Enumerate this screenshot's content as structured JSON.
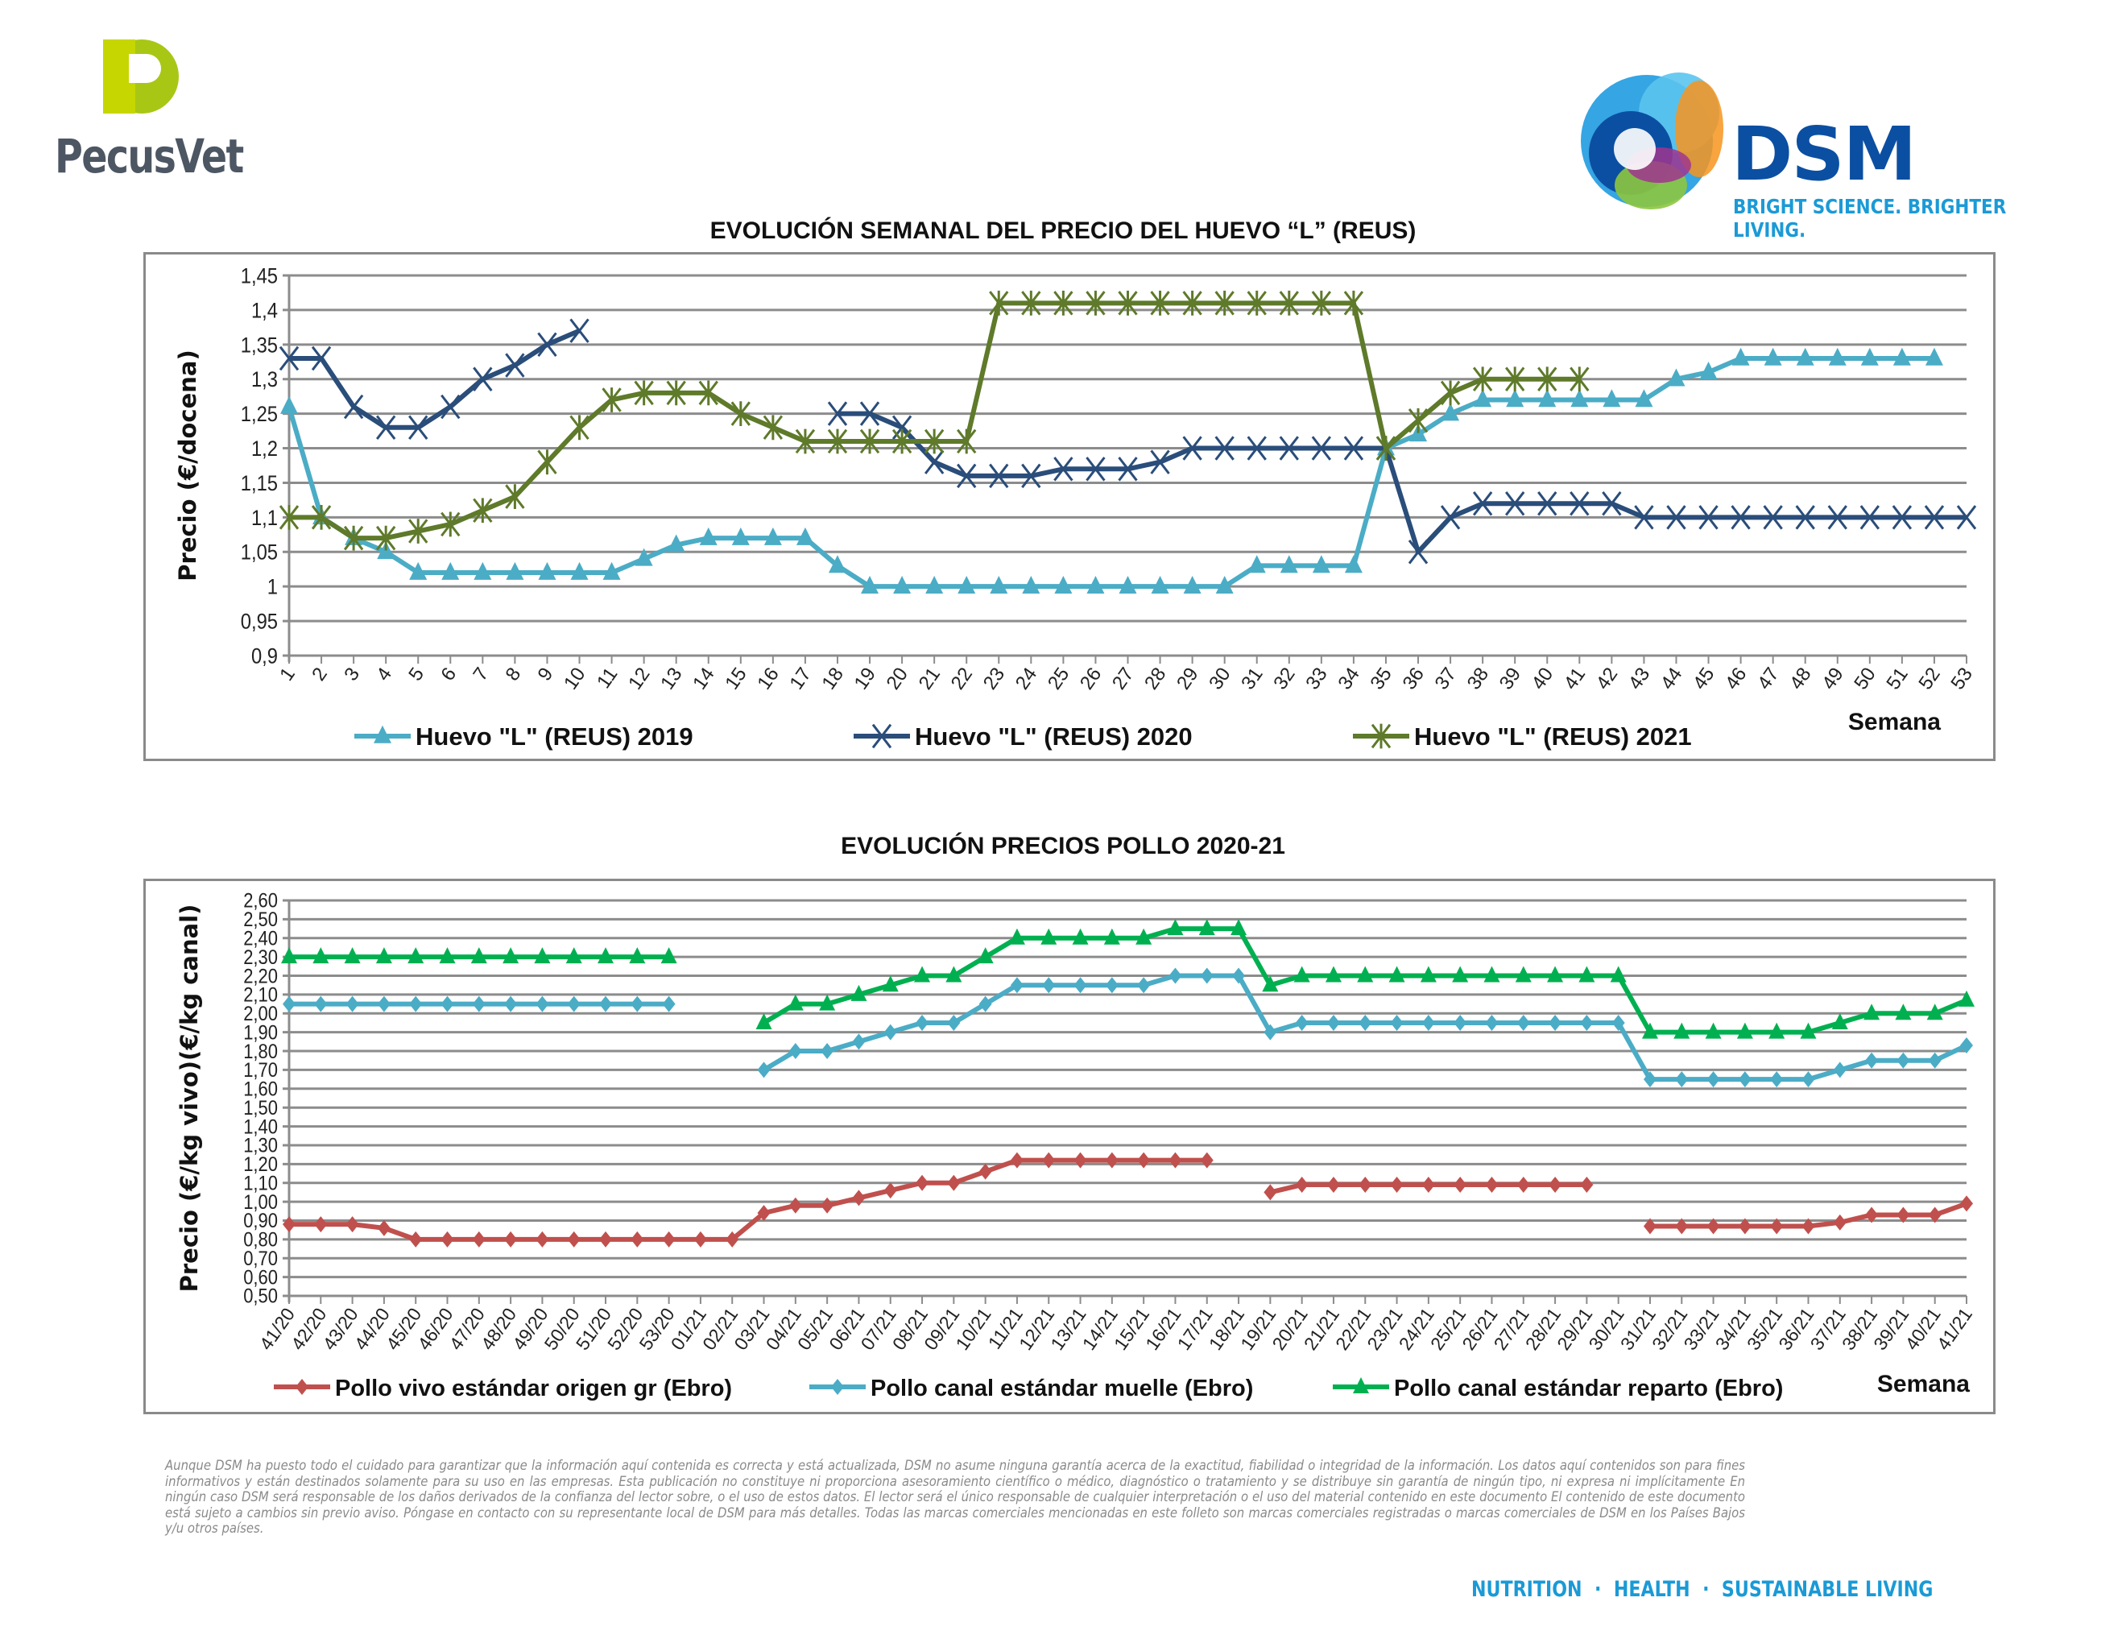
{
  "logos": {
    "pecusvet": "PecusVet",
    "dsm_name": "DSM",
    "dsm_tagline": "BRIGHT SCIENCE. BRIGHTER LIVING."
  },
  "chart_data": [
    {
      "type": "line",
      "title": "EVOLUCIÓN SEMANAL DEL PRECIO DEL HUEVO “L” (REUS)",
      "ylabel": "Precio (€/docena)",
      "xlabel": "Semana",
      "ylim": [
        0.9,
        1.45
      ],
      "ystep": 0.05,
      "ytick_labels": [
        "0,9",
        "0,95",
        "1",
        "1,05",
        "1,1",
        "1,15",
        "1,2",
        "1,25",
        "1,3",
        "1,35",
        "1,4",
        "1,45"
      ],
      "categories": [
        "1",
        "2",
        "3",
        "4",
        "5",
        "6",
        "7",
        "8",
        "9",
        "10",
        "11",
        "12",
        "13",
        "14",
        "15",
        "16",
        "17",
        "18",
        "19",
        "20",
        "21",
        "22",
        "23",
        "24",
        "25",
        "26",
        "27",
        "28",
        "29",
        "30",
        "31",
        "32",
        "33",
        "34",
        "35",
        "36",
        "37",
        "38",
        "39",
        "40",
        "41",
        "42",
        "43",
        "44",
        "45",
        "46",
        "47",
        "48",
        "49",
        "50",
        "51",
        "52",
        "53"
      ],
      "grid": true,
      "legend": "bottom",
      "series": [
        {
          "name": "Huevo \"L\" (REUS) 2019",
          "color": "#4bacc6",
          "marker": "triangle",
          "values": [
            1.26,
            1.1,
            1.07,
            1.05,
            1.02,
            1.02,
            1.02,
            1.02,
            1.02,
            1.02,
            1.02,
            1.04,
            1.06,
            1.07,
            1.07,
            1.07,
            1.07,
            1.03,
            1.0,
            1.0,
            1.0,
            1.0,
            1.0,
            1.0,
            1.0,
            1.0,
            1.0,
            1.0,
            1.0,
            1.0,
            1.03,
            1.03,
            1.03,
            1.03,
            1.2,
            1.22,
            1.25,
            1.27,
            1.27,
            1.27,
            1.27,
            1.27,
            1.27,
            1.3,
            1.31,
            1.33,
            1.33,
            1.33,
            1.33,
            1.33,
            1.33,
            1.33,
            null
          ]
        },
        {
          "name": "Huevo \"L\" (REUS) 2020",
          "color": "#2a4d7a",
          "marker": "x",
          "values": [
            1.33,
            1.33,
            1.26,
            1.23,
            1.23,
            1.26,
            1.3,
            1.32,
            1.35,
            1.37,
            null,
            null,
            null,
            null,
            null,
            null,
            null,
            1.25,
            1.25,
            1.23,
            1.18,
            1.16,
            1.16,
            1.16,
            1.17,
            1.17,
            1.17,
            1.18,
            1.2,
            1.2,
            1.2,
            1.2,
            1.2,
            1.2,
            1.2,
            1.05,
            1.1,
            1.12,
            1.12,
            1.12,
            1.12,
            1.12,
            1.1,
            1.1,
            1.1,
            1.1,
            1.1,
            1.1,
            1.1,
            1.1,
            1.1,
            1.1,
            1.1
          ]
        },
        {
          "name": "Huevo \"L\" (REUS) 2021",
          "color": "#5e7a2a",
          "marker": "asterisk",
          "values": [
            1.1,
            1.1,
            1.07,
            1.07,
            1.08,
            1.09,
            1.11,
            1.13,
            1.18,
            1.23,
            1.27,
            1.28,
            1.28,
            1.28,
            1.25,
            1.23,
            1.21,
            1.21,
            1.21,
            1.21,
            1.21,
            1.21,
            1.41,
            1.41,
            1.41,
            1.41,
            1.41,
            1.41,
            1.41,
            1.41,
            1.41,
            1.41,
            1.41,
            1.41,
            1.2,
            1.24,
            1.28,
            1.3,
            1.3,
            1.3,
            1.3,
            null,
            null,
            null,
            null,
            null,
            null,
            null,
            null,
            null,
            null,
            null,
            null
          ]
        }
      ]
    },
    {
      "type": "line",
      "title": "EVOLUCIÓN PRECIOS POLLO 2020-21",
      "ylabel": "Precio (€/kg vivo)(€/kg canal)",
      "xlabel": "Semana",
      "ylim": [
        0.5,
        2.6
      ],
      "ystep": 0.1,
      "ytick_labels": [
        "0,50",
        "0,60",
        "0,70",
        "0,80",
        "0,90",
        "1,00",
        "1,10",
        "1,20",
        "1,30",
        "1,40",
        "1,50",
        "1,60",
        "1,70",
        "1,80",
        "1,90",
        "2,00",
        "2,10",
        "2,20",
        "2,30",
        "2,40",
        "2,50",
        "2,60"
      ],
      "categories": [
        "41/20",
        "42/20",
        "43/20",
        "44/20",
        "45/20",
        "46/20",
        "47/20",
        "48/20",
        "49/20",
        "50/20",
        "51/20",
        "52/20",
        "53/20",
        "01/21",
        "02/21",
        "03/21",
        "04/21",
        "05/21",
        "06/21",
        "07/21",
        "08/21",
        "09/21",
        "10/21",
        "11/21",
        "12/21",
        "13/21",
        "14/21",
        "15/21",
        "16/21",
        "17/21",
        "18/21",
        "19/21",
        "20/21",
        "21/21",
        "22/21",
        "23/21",
        "24/21",
        "25/21",
        "26/21",
        "27/21",
        "28/21",
        "29/21",
        "30/21",
        "31/21",
        "32/21",
        "33/21",
        "34/21",
        "35/21",
        "36/21",
        "37/21",
        "38/21",
        "39/21",
        "40/21",
        "41/21"
      ],
      "grid": true,
      "legend": "bottom",
      "series": [
        {
          "name": "Pollo vivo estándar origen gr (Ebro)",
          "color": "#c0504d",
          "marker": "diamond",
          "values": [
            0.88,
            0.88,
            0.88,
            0.86,
            0.8,
            0.8,
            0.8,
            0.8,
            0.8,
            0.8,
            0.8,
            0.8,
            0.8,
            0.8,
            0.8,
            0.94,
            0.98,
            0.98,
            1.02,
            1.06,
            1.1,
            1.1,
            1.16,
            1.22,
            1.22,
            1.22,
            1.22,
            1.22,
            1.22,
            1.22,
            null,
            1.05,
            1.09,
            1.09,
            1.09,
            1.09,
            1.09,
            1.09,
            1.09,
            1.09,
            1.09,
            1.09,
            null,
            0.87,
            0.87,
            0.87,
            0.87,
            0.87,
            0.87,
            0.89,
            0.93,
            0.93,
            0.93,
            0.99
          ]
        },
        {
          "name": "Pollo canal estándar muelle (Ebro)",
          "color": "#4bacc6",
          "marker": "diamond",
          "values": [
            2.05,
            2.05,
            2.05,
            2.05,
            2.05,
            2.05,
            2.05,
            2.05,
            2.05,
            2.05,
            2.05,
            2.05,
            2.05,
            null,
            null,
            1.7,
            1.8,
            1.8,
            1.85,
            1.9,
            1.95,
            1.95,
            2.05,
            2.15,
            2.15,
            2.15,
            2.15,
            2.15,
            2.2,
            2.2,
            2.2,
            1.9,
            1.95,
            1.95,
            1.95,
            1.95,
            1.95,
            1.95,
            1.95,
            1.95,
            1.95,
            1.95,
            1.95,
            1.65,
            1.65,
            1.65,
            1.65,
            1.65,
            1.65,
            1.7,
            1.75,
            1.75,
            1.75,
            1.83
          ]
        },
        {
          "name": "Pollo canal estándar reparto (Ebro)",
          "color": "#00b050",
          "marker": "triangle",
          "values": [
            2.3,
            2.3,
            2.3,
            2.3,
            2.3,
            2.3,
            2.3,
            2.3,
            2.3,
            2.3,
            2.3,
            2.3,
            2.3,
            null,
            null,
            1.95,
            2.05,
            2.05,
            2.1,
            2.15,
            2.2,
            2.2,
            2.3,
            2.4,
            2.4,
            2.4,
            2.4,
            2.4,
            2.45,
            2.45,
            2.45,
            2.15,
            2.2,
            2.2,
            2.2,
            2.2,
            2.2,
            2.2,
            2.2,
            2.2,
            2.2,
            2.2,
            2.2,
            1.9,
            1.9,
            1.9,
            1.9,
            1.9,
            1.9,
            1.95,
            2.0,
            2.0,
            2.0,
            2.07
          ]
        }
      ]
    }
  ],
  "disclaimer": "Aunque DSM ha puesto todo el cuidado para garantizar que la información aquí contenida es correcta y está actualizada, DSM no asume ninguna garantía acerca de la exactitud, fiabilidad o integridad de la información. Los datos aquí contenidos son para fines informativos y están destinados solamente para su uso en las empresas. Esta publicación no constituye ni proporciona asesoramiento científico o médico, diagnóstico o tratamiento y se distribuye sin garantía de ningún tipo, ni expresa ni implícitamente En ningún caso DSM será responsable de los daños derivados de la confianza del lector sobre, o el uso de estos datos. El lector será el único responsable de cualquier interpretación o el uso del material contenido en este documento El contenido de este documento está sujeto a cambios sin previo aviso. Póngase en contacto con su representante local de DSM para más detalles. Todas las marcas comerciales mencionadas en este folleto son marcas comerciales registradas o marcas comerciales de DSM en los Países Bajos y/u otros países.",
  "footer_tagline": "NUTRITION  ·  HEALTH  ·  SUSTAINABLE LIVING"
}
